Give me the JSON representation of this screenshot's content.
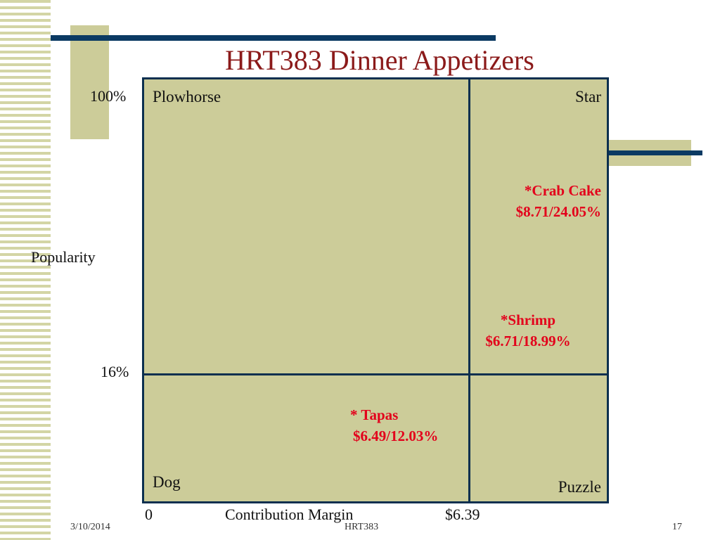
{
  "slide": {
    "title": "HRT383 Dinner Appetizers",
    "colors": {
      "title": "#8b1a1a",
      "accent_bar": "#0b3a63",
      "quadrant_fill": "#cccc99",
      "item_text": "#e3001b"
    }
  },
  "matrix": {
    "quadrants": {
      "top_left": "Plowhorse",
      "top_right": "Star",
      "bottom_left": "Dog",
      "bottom_right": "Puzzle"
    },
    "y_axis": {
      "label": "Popularity",
      "top_tick": "100%",
      "threshold_tick": "16%"
    },
    "x_axis": {
      "origin": "0",
      "label": "Contribution Margin",
      "threshold_tick": "$6.39"
    },
    "items": [
      {
        "name": "*Crab Cake",
        "value": "$8.71/24.05%"
      },
      {
        "name": "*Shrimp",
        "value": "$6.71/18.99%"
      },
      {
        "name": "* Tapas",
        "value": "$6.49/12.03%"
      }
    ]
  },
  "footer": {
    "date": "3/10/2014",
    "course": "HRT383",
    "page": "17"
  }
}
